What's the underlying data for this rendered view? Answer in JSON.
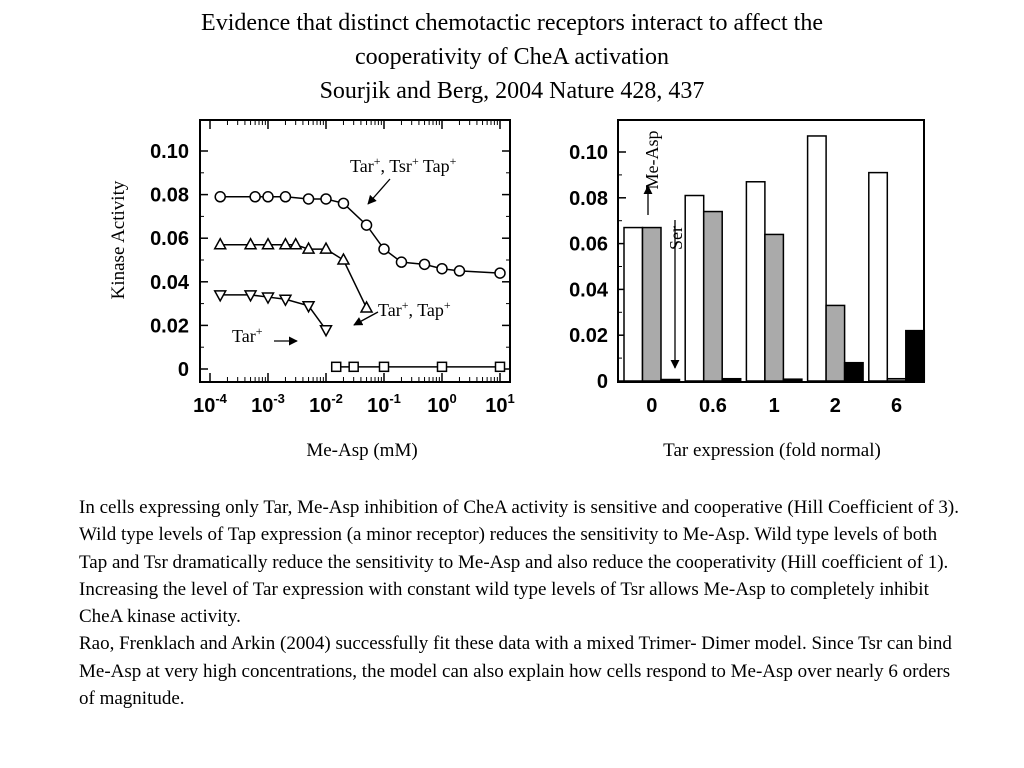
{
  "title": {
    "line1": "Evidence that distinct chemotactic receptors interact to affect the",
    "line2": "cooperativity of CheA activation",
    "line3": "Sourjik and Berg, 2004 Nature 428, 437"
  },
  "chart_data": [
    {
      "type": "line",
      "xscale": "log",
      "xlabel": "Me-Asp (mM)",
      "ylabel": "Kinase Activity",
      "xlim": [
        0.0001,
        10
      ],
      "ylim": [
        0,
        0.11
      ],
      "xticks": [
        0.0001,
        0.001,
        0.01,
        0.1,
        1,
        10
      ],
      "xtick_labels": [
        {
          "base": "10",
          "exp": "-4"
        },
        {
          "base": "10",
          "exp": "-3"
        },
        {
          "base": "10",
          "exp": "-2"
        },
        {
          "base": "10",
          "exp": "-1"
        },
        {
          "base": "10",
          "exp": "0"
        },
        {
          "base": "10",
          "exp": "1"
        }
      ],
      "yticks": [
        0,
        0.02,
        0.04,
        0.06,
        0.08,
        0.1
      ],
      "ytick_labels": [
        "0",
        "0.02",
        "0.04",
        "0.06",
        "0.08",
        "0.10"
      ],
      "series": [
        {
          "marker": "circle",
          "x": [
            0.00015,
            0.0006,
            0.001,
            0.002,
            0.005,
            0.01,
            0.02,
            0.05,
            0.1,
            0.2,
            0.5,
            1,
            2,
            10
          ],
          "y": [
            0.079,
            0.079,
            0.079,
            0.079,
            0.078,
            0.078,
            0.076,
            0.066,
            0.055,
            0.049,
            0.048,
            0.046,
            0.045,
            0.044
          ]
        },
        {
          "marker": "triangle-up",
          "x": [
            0.00015,
            0.0005,
            0.001,
            0.002,
            0.003,
            0.005,
            0.01,
            0.02,
            0.05
          ],
          "y": [
            0.057,
            0.057,
            0.057,
            0.057,
            0.057,
            0.055,
            0.055,
            0.05,
            0.028
          ]
        },
        {
          "marker": "triangle-down",
          "x": [
            0.00015,
            0.0005,
            0.001,
            0.002,
            0.005,
            0.01
          ],
          "y": [
            0.034,
            0.034,
            0.033,
            0.032,
            0.029,
            0.018
          ]
        },
        {
          "marker": "square",
          "x": [
            0.015,
            0.03,
            0.1,
            1,
            10
          ],
          "y": [
            0.001,
            0.001,
            0.001,
            0.001,
            0.001
          ]
        }
      ],
      "annotations": [
        {
          "parts": [
            {
              "t": "Tar"
            },
            {
              "t": "+",
              "sup": true
            },
            {
              "t": ", Tsr"
            },
            {
              "t": "+",
              "sup": true
            },
            {
              "t": " Tap"
            },
            {
              "t": "+",
              "sup": true
            }
          ]
        },
        {
          "parts": [
            {
              "t": "Tar"
            },
            {
              "t": "+",
              "sup": true
            },
            {
              "t": ", Tap"
            },
            {
              "t": "+",
              "sup": true
            }
          ]
        },
        {
          "parts": [
            {
              "t": "Tar"
            },
            {
              "t": "+",
              "sup": true
            }
          ]
        }
      ]
    },
    {
      "type": "bar",
      "xlabel": "Tar expression (fold normal)",
      "categories": [
        "0",
        "0.6",
        "1",
        "2",
        "6"
      ],
      "ylim": [
        0,
        0.11
      ],
      "yticks": [
        0,
        0.02,
        0.04,
        0.06,
        0.08,
        0.1
      ],
      "ytick_labels": [
        "0",
        "0.02",
        "0.04",
        "0.06",
        "0.08",
        "0.10"
      ],
      "series": [
        {
          "color": "#ffffff",
          "values": [
            0.067,
            0.081,
            0.087,
            0.107,
            0.091
          ]
        },
        {
          "color": "#aaaaaa",
          "values": [
            0.067,
            0.074,
            0.064,
            0.033,
            0.001
          ]
        },
        {
          "color": "#000000",
          "values": [
            0.0005,
            0.001,
            0.0008,
            0.008,
            0.022
          ]
        }
      ],
      "annotations": [
        "Me-Asp",
        "Ser"
      ]
    }
  ],
  "caption": {
    "p1": "In cells expressing only Tar, Me-Asp inhibition of CheA activity is sensitive and cooperative (Hill Coefficient of 3).  Wild type levels of Tap expression (a minor receptor) reduces the sensitivity to Me-Asp.  Wild type levels of both Tap and Tsr dramatically reduce the sensitivity to Me-Asp and also reduce the cooperativity (Hill coefficient of 1).",
    "p2": "Increasing the level of Tar expression with constant wild type levels of Tsr allows Me-Asp to completely inhibit CheA kinase activity.",
    "p3": "Rao, Frenklach and Arkin (2004) successfully fit these data with a mixed Trimer- Dimer model.  Since Tsr can bind Me-Asp at very high concentrations, the model can also explain how cells respond to Me-Asp over nearly 6 orders of magnitude."
  }
}
